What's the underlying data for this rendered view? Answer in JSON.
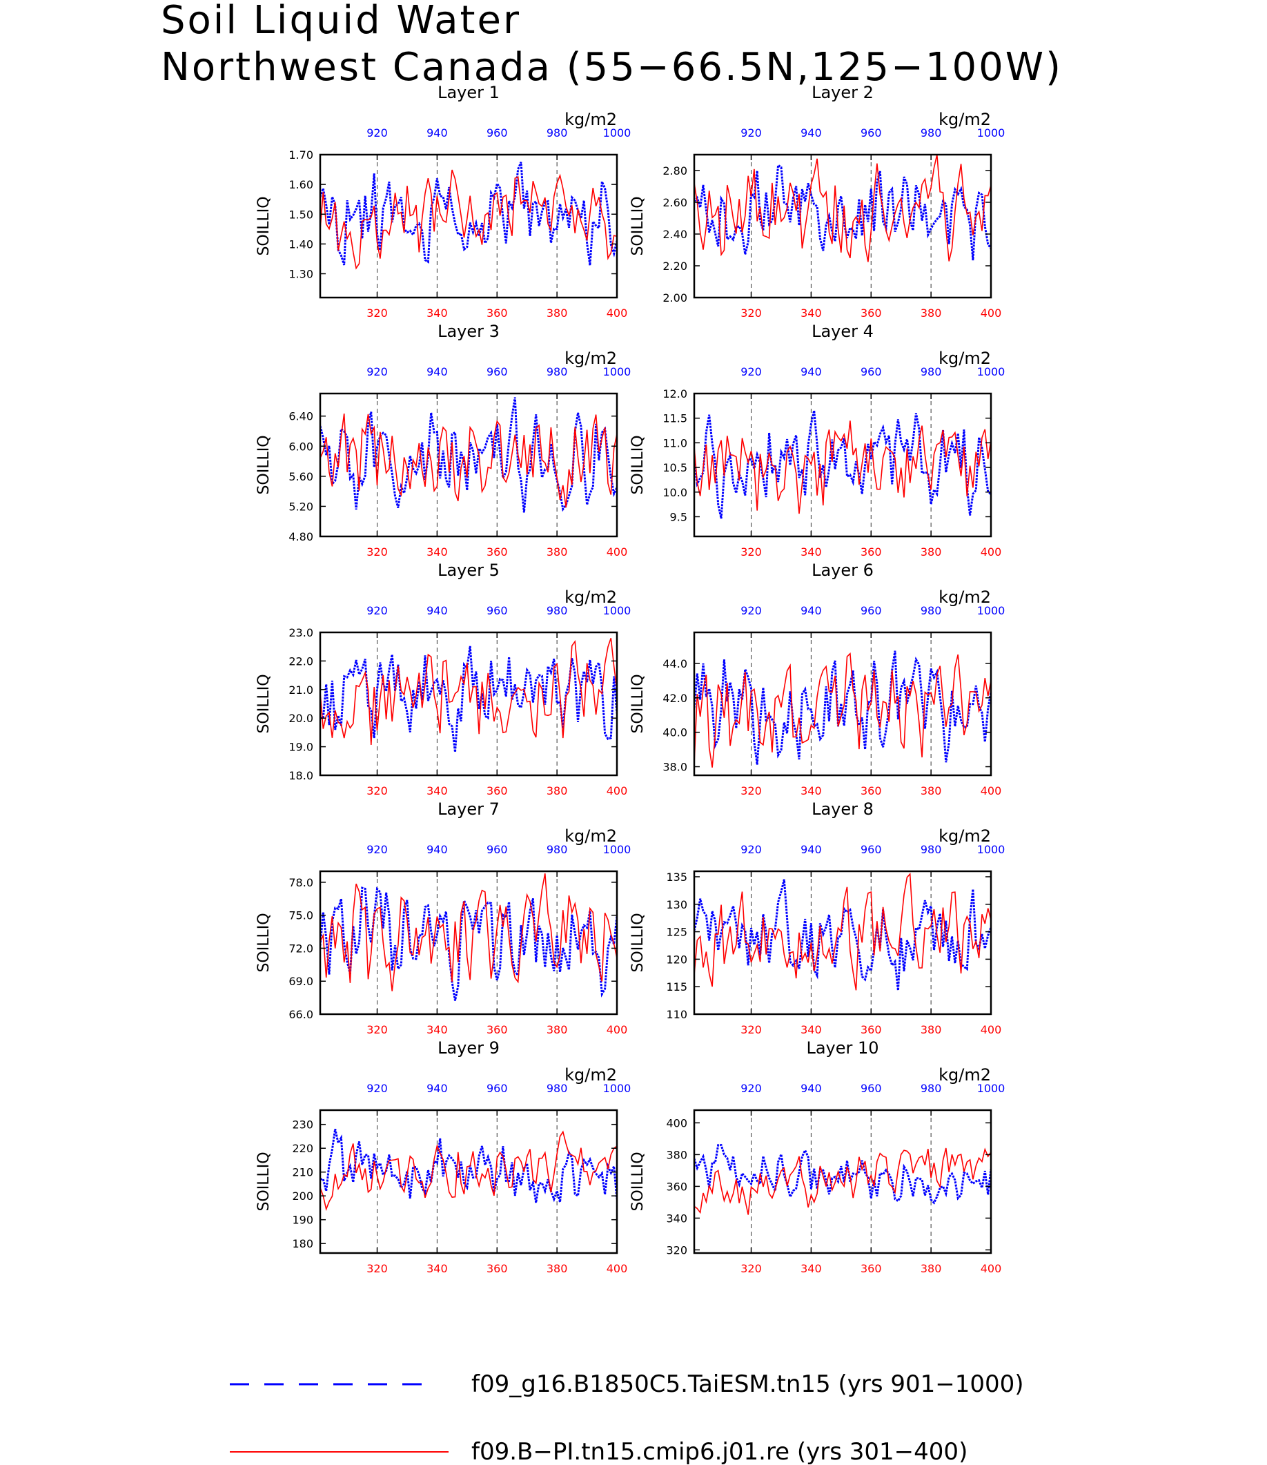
{
  "figure": {
    "title_line1": "Soil Liquid Water",
    "title_line2": "Northwest Canada (55−66.5N,125−100W)",
    "units": "kg/m2"
  },
  "colors": {
    "series_blue": "#0000ff",
    "series_red": "#ff0000",
    "axis": "#000000"
  },
  "legend": [
    {
      "label": "f09_g16.B1850C5.TaiESM.tn15 (yrs 901−1000)",
      "color": "#0000ff",
      "style": "dashed"
    },
    {
      "label": "f09.B−PI.tn15.cmip6.j01.re (yrs 301−400)",
      "color": "#ff0000",
      "style": "solid"
    }
  ],
  "chart_data": [
    {
      "type": "line",
      "title": "Layer 1",
      "ylabel": "SOILLIQ",
      "ylim": [
        1.22,
        1.7
      ],
      "yticks": [
        1.3,
        1.4,
        1.5,
        1.6,
        1.7
      ],
      "ytick_labels": [
        "1.30",
        "1.40",
        "1.50",
        "1.60",
        "1.70"
      ],
      "y_base": 1.5,
      "y_amp": 0.07,
      "y_min": 1.25,
      "y_max": 1.69,
      "x_bottom": {
        "range": [
          301,
          400
        ],
        "ticks": [
          320,
          340,
          360,
          380,
          400
        ]
      },
      "x_top": {
        "range": [
          901,
          1000
        ],
        "ticks": [
          920,
          940,
          960,
          980,
          1000
        ]
      },
      "series": [
        {
          "name": "f09_g16.B1850C5.TaiESM.tn15 (yrs 901−1000)",
          "axis": "top",
          "seed": 11,
          "trend": 0.0
        },
        {
          "name": "f09.B−PI.tn15.cmip6.j01.re (yrs 301−400)",
          "axis": "bottom",
          "seed": 12,
          "trend": 0.01
        }
      ]
    },
    {
      "type": "line",
      "title": "Layer 2",
      "ylabel": "SOILLIQ",
      "ylim": [
        2.0,
        2.9
      ],
      "yticks": [
        2.0,
        2.2,
        2.4,
        2.6,
        2.8
      ],
      "ytick_labels": [
        "2.00",
        "2.20",
        "2.40",
        "2.60",
        "2.80"
      ],
      "y_base": 2.55,
      "y_amp": 0.14,
      "y_min": 2.02,
      "y_max": 2.9,
      "x_bottom": {
        "range": [
          301,
          400
        ],
        "ticks": [
          320,
          340,
          360,
          380,
          400
        ]
      },
      "x_top": {
        "range": [
          901,
          1000
        ],
        "ticks": [
          920,
          940,
          960,
          980,
          1000
        ]
      },
      "series": [
        {
          "name": "f09_g16.B1850C5.TaiESM.tn15 (yrs 901−1000)",
          "axis": "top",
          "seed": 21,
          "trend": 0.0
        },
        {
          "name": "f09.B−PI.tn15.cmip6.j01.re (yrs 301−400)",
          "axis": "bottom",
          "seed": 22,
          "trend": 0.03
        }
      ]
    },
    {
      "type": "line",
      "title": "Layer 3",
      "ylabel": "SOILLIQ",
      "ylim": [
        4.8,
        6.7
      ],
      "yticks": [
        4.8,
        5.2,
        5.6,
        6.0,
        6.4
      ],
      "ytick_labels": [
        "4.80",
        "5.20",
        "5.60",
        "6.00",
        "6.40"
      ],
      "y_base": 5.85,
      "y_amp": 0.3,
      "y_min": 4.85,
      "y_max": 6.65,
      "x_bottom": {
        "range": [
          301,
          400
        ],
        "ticks": [
          320,
          340,
          360,
          380,
          400
        ]
      },
      "x_top": {
        "range": [
          901,
          1000
        ],
        "ticks": [
          920,
          940,
          960,
          980,
          1000
        ]
      },
      "series": [
        {
          "name": "f09_g16.B1850C5.TaiESM.tn15 (yrs 901−1000)",
          "axis": "top",
          "seed": 31,
          "trend": -0.05
        },
        {
          "name": "f09.B−PI.tn15.cmip6.j01.re (yrs 301−400)",
          "axis": "bottom",
          "seed": 32,
          "trend": 0.1
        }
      ]
    },
    {
      "type": "line",
      "title": "Layer 4",
      "ylabel": "SOILLIQ",
      "ylim": [
        9.1,
        12.0
      ],
      "yticks": [
        9.5,
        10.0,
        10.5,
        11.0,
        11.5,
        12.0
      ],
      "ytick_labels": [
        "9.5",
        "10.0",
        "10.5",
        "11.0",
        "11.5",
        "12.0"
      ],
      "y_base": 10.6,
      "y_amp": 0.45,
      "y_min": 9.2,
      "y_max": 11.85,
      "x_bottom": {
        "range": [
          301,
          400
        ],
        "ticks": [
          320,
          340,
          360,
          380,
          400
        ]
      },
      "x_top": {
        "range": [
          901,
          1000
        ],
        "ticks": [
          920,
          940,
          960,
          980,
          1000
        ]
      },
      "series": [
        {
          "name": "f09_g16.B1850C5.TaiESM.tn15 (yrs 901−1000)",
          "axis": "top",
          "seed": 41,
          "trend": -0.15
        },
        {
          "name": "f09.B−PI.tn15.cmip6.j01.re (yrs 301−400)",
          "axis": "bottom",
          "seed": 42,
          "trend": 0.2
        }
      ]
    },
    {
      "type": "line",
      "title": "Layer 5",
      "ylabel": "SOILLIQ",
      "ylim": [
        18.0,
        23.0
      ],
      "yticks": [
        18.0,
        19.0,
        20.0,
        21.0,
        22.0,
        23.0
      ],
      "ytick_labels": [
        "18.0",
        "19.0",
        "20.0",
        "21.0",
        "22.0",
        "23.0"
      ],
      "y_base": 20.7,
      "y_amp": 0.85,
      "y_min": 18.2,
      "y_max": 22.8,
      "x_bottom": {
        "range": [
          301,
          400
        ],
        "ticks": [
          320,
          340,
          360,
          380,
          400
        ]
      },
      "x_top": {
        "range": [
          901,
          1000
        ],
        "ticks": [
          920,
          940,
          960,
          980,
          1000
        ]
      },
      "series": [
        {
          "name": "f09_g16.B1850C5.TaiESM.tn15 (yrs 901−1000)",
          "axis": "top",
          "seed": 51,
          "trend": -0.5
        },
        {
          "name": "f09.B−PI.tn15.cmip6.j01.re (yrs 301−400)",
          "axis": "bottom",
          "seed": 52,
          "trend": 0.5
        }
      ]
    },
    {
      "type": "line",
      "title": "Layer 6",
      "ylabel": "SOILLIQ",
      "ylim": [
        37.5,
        45.8
      ],
      "yticks": [
        38.0,
        40.0,
        42.0,
        44.0
      ],
      "ytick_labels": [
        "38.0",
        "40.0",
        "42.0",
        "44.0"
      ],
      "y_base": 41.5,
      "y_amp": 1.4,
      "y_min": 37.8,
      "y_max": 45.5,
      "x_bottom": {
        "range": [
          301,
          400
        ],
        "ticks": [
          320,
          340,
          360,
          380,
          400
        ]
      },
      "x_top": {
        "range": [
          901,
          1000
        ],
        "ticks": [
          920,
          940,
          960,
          980,
          1000
        ]
      },
      "series": [
        {
          "name": "f09_g16.B1850C5.TaiESM.tn15 (yrs 901−1000)",
          "axis": "top",
          "seed": 61,
          "trend": -1.0
        },
        {
          "name": "f09.B−PI.tn15.cmip6.j01.re (yrs 301−400)",
          "axis": "bottom",
          "seed": 62,
          "trend": 1.0
        }
      ]
    },
    {
      "type": "line",
      "title": "Layer 7",
      "ylabel": "SOILLIQ",
      "ylim": [
        66.0,
        79.0
      ],
      "yticks": [
        66.0,
        69.0,
        72.0,
        75.0,
        78.0
      ],
      "ytick_labels": [
        "66.0",
        "69.0",
        "72.0",
        "75.0",
        "78.0"
      ],
      "y_base": 73.0,
      "y_amp": 2.2,
      "y_min": 66.8,
      "y_max": 78.8,
      "x_bottom": {
        "range": [
          301,
          400
        ],
        "ticks": [
          320,
          340,
          360,
          380,
          400
        ]
      },
      "x_top": {
        "range": [
          901,
          1000
        ],
        "ticks": [
          920,
          940,
          960,
          980,
          1000
        ]
      },
      "series": [
        {
          "name": "f09_g16.B1850C5.TaiESM.tn15 (yrs 901−1000)",
          "axis": "top",
          "seed": 71,
          "trend": -2.0
        },
        {
          "name": "f09.B−PI.tn15.cmip6.j01.re (yrs 301−400)",
          "axis": "bottom",
          "seed": 72,
          "trend": 1.8
        }
      ]
    },
    {
      "type": "line",
      "title": "Layer 8",
      "ylabel": "SOILLIQ",
      "ylim": [
        110,
        136
      ],
      "yticks": [
        110,
        115,
        120,
        125,
        130,
        135
      ],
      "ytick_labels": [
        "110",
        "115",
        "120",
        "125",
        "130",
        "135"
      ],
      "y_base": 124,
      "y_amp": 4.0,
      "y_min": 110.5,
      "y_max": 135.5,
      "x_bottom": {
        "range": [
          301,
          400
        ],
        "ticks": [
          320,
          340,
          360,
          380,
          400
        ]
      },
      "x_top": {
        "range": [
          901,
          1000
        ],
        "ticks": [
          920,
          940,
          960,
          980,
          1000
        ]
      },
      "series": [
        {
          "name": "f09_g16.B1850C5.TaiESM.tn15 (yrs 901−1000)",
          "axis": "top",
          "seed": 81,
          "trend": -3.0
        },
        {
          "name": "f09.B−PI.tn15.cmip6.j01.re (yrs 301−400)",
          "axis": "bottom",
          "seed": 82,
          "trend": 3.5
        }
      ]
    },
    {
      "type": "line",
      "title": "Layer 9",
      "ylabel": "SOILLIQ",
      "ylim": [
        176,
        236
      ],
      "yticks": [
        180,
        190,
        200,
        210,
        220,
        230
      ],
      "ytick_labels": [
        "180",
        "190",
        "200",
        "210",
        "220",
        "230"
      ],
      "y_base": 210,
      "y_amp": 6.0,
      "y_min": 178,
      "y_max": 234,
      "x_bottom": {
        "range": [
          301,
          400
        ],
        "ticks": [
          320,
          340,
          360,
          380,
          400
        ]
      },
      "x_top": {
        "range": [
          901,
          1000
        ],
        "ticks": [
          920,
          940,
          960,
          980,
          1000
        ]
      },
      "series": [
        {
          "name": "f09_g16.B1850C5.TaiESM.tn15 (yrs 901−1000)",
          "axis": "top",
          "seed": 91,
          "trend": -8.0
        },
        {
          "name": "f09.B−PI.tn15.cmip6.j01.re (yrs 301−400)",
          "axis": "bottom",
          "seed": 92,
          "trend": 10.0
        }
      ]
    },
    {
      "type": "line",
      "title": "Layer 10",
      "ylabel": "SOILLIQ",
      "ylim": [
        318,
        408
      ],
      "yticks": [
        320,
        340,
        360,
        380,
        400
      ],
      "ytick_labels": [
        "320",
        "340",
        "360",
        "380",
        "400"
      ],
      "y_base": 365,
      "y_amp": 7.0,
      "y_min": 322,
      "y_max": 404,
      "x_bottom": {
        "range": [
          301,
          400
        ],
        "ticks": [
          320,
          340,
          360,
          380,
          400
        ]
      },
      "x_top": {
        "range": [
          901,
          1000
        ],
        "ticks": [
          920,
          940,
          960,
          980,
          1000
        ]
      },
      "series": [
        {
          "name": "f09_g16.B1850C5.TaiESM.tn15 (yrs 901−1000)",
          "axis": "top",
          "seed": 101,
          "trend": -15.0
        },
        {
          "name": "f09.B−PI.tn15.cmip6.j01.re (yrs 301−400)",
          "axis": "bottom",
          "seed": 102,
          "trend": 25.0
        }
      ]
    }
  ]
}
